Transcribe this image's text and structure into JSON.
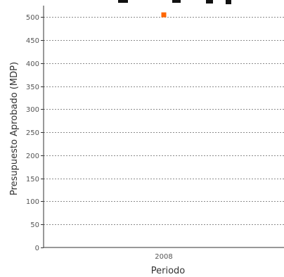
{
  "chart_data": {
    "type": "scatter",
    "xlabel": "Periodo",
    "ylabel": "Presupuesto Aprobado (MDP)",
    "categories": [
      "2008"
    ],
    "series": [
      {
        "values": [
          505
        ],
        "color": "#ff6600"
      }
    ],
    "ylim": [
      0,
      525
    ],
    "yticks": [
      0,
      50,
      100,
      150,
      200,
      250,
      300,
      350,
      400,
      450,
      500
    ],
    "grid": true,
    "grid_style": "dashed",
    "legend": "none"
  }
}
